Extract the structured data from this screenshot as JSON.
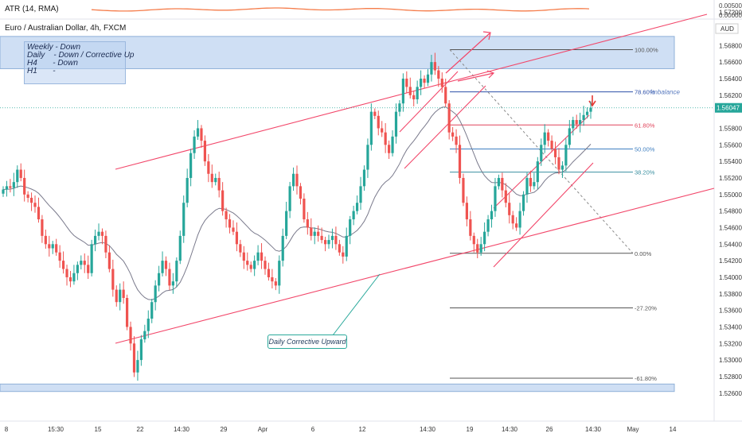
{
  "indicator": {
    "label": "ATR (14, RMA)",
    "value_label": "0.00500",
    "zero_label": "0.00000"
  },
  "header": {
    "symbol": "Euro / Australian Dollar, 4h, FXCM",
    "currency": "AUD"
  },
  "notes": [
    "Weekly - Down",
    "Daily    - Down / Corrective Up",
    "H4       - Down",
    "H1       -"
  ],
  "callout": "Daily Corrective Upward",
  "imbalance_label": "Imbalance",
  "colors": {
    "up": "#26a69a",
    "down": "#ef5350",
    "channel": "#f2476a",
    "zone": "#bbd2f0",
    "ma": "#7a7a8c",
    "atr": "#f57c4a"
  },
  "chart_data": {
    "type": "candlestick",
    "symbol": "EURAUD",
    "timeframe": "4h",
    "currency": "AUD",
    "y_range": [
      1.5255,
      1.5735
    ],
    "y_ticks": [
      "1.57200",
      "1.56800",
      "1.56600",
      "1.56400",
      "1.56200",
      "1.55800",
      "1.55600",
      "1.55400",
      "1.55200",
      "1.55000",
      "1.54800",
      "1.54600",
      "1.54400",
      "1.54200",
      "1.54000",
      "1.53800",
      "1.53600",
      "1.53400",
      "1.53200",
      "1.53000",
      "1.52800",
      "1.52600"
    ],
    "last_price": "1.56047",
    "x_ticks": [
      "8",
      "15:30",
      "15",
      "22",
      "14:30",
      "29",
      "Apr",
      "6",
      "12",
      "14:30",
      "19",
      "14:30",
      "26",
      "14:30",
      "May",
      "14"
    ],
    "fib_levels": [
      {
        "label": "100.00%",
        "value": 1.5675
      },
      {
        "label": "78.60%",
        "value": 1.5624
      },
      {
        "label": "61.80%",
        "value": 1.5584
      },
      {
        "label": "50.00%",
        "value": 1.5555
      },
      {
        "label": "38.20%",
        "value": 1.5527
      },
      {
        "label": "0.00%",
        "value": 1.5429
      },
      {
        "label": "-27.20%",
        "value": 1.5363
      },
      {
        "label": "-61.80%",
        "value": 1.5278
      }
    ],
    "zones": [
      {
        "from": 1.5652,
        "to": 1.5691
      },
      {
        "from": 1.5262,
        "to": 1.5271
      }
    ],
    "grid": false,
    "series": [
      {
        "values": [
          1.5506,
          1.551,
          1.5508,
          1.5515,
          1.553,
          1.552,
          1.55,
          1.5496,
          1.549,
          1.5485,
          1.547,
          1.545,
          1.544,
          1.5435,
          1.544,
          1.543,
          1.542,
          1.541,
          1.54,
          1.5395,
          1.5405,
          1.5415,
          1.542,
          1.5415,
          1.5405,
          1.544,
          1.545,
          1.5455,
          1.545,
          1.543,
          1.541,
          1.5385,
          1.537,
          1.5385,
          1.5375,
          1.534,
          1.532,
          1.5285,
          1.53,
          1.5325,
          1.5335,
          1.535,
          1.537,
          1.539,
          1.5405,
          1.542,
          1.541,
          1.539,
          1.5395,
          1.542,
          1.545,
          1.549,
          1.552,
          1.555,
          1.557,
          1.558,
          1.5565,
          1.554,
          1.5525,
          1.5515,
          1.552,
          1.5505,
          1.548,
          1.547,
          1.546,
          1.5455,
          1.544,
          1.543,
          1.542,
          1.5415,
          1.541,
          1.542,
          1.543,
          1.542,
          1.541,
          1.54,
          1.5395,
          1.539,
          1.542,
          1.545,
          1.548,
          1.551,
          1.5525,
          1.551,
          1.5495,
          1.547,
          1.546,
          1.545,
          1.5455,
          1.545,
          1.5445,
          1.544,
          1.5445,
          1.545,
          1.544,
          1.543,
          1.5425,
          1.545,
          1.547,
          1.548,
          1.549,
          1.551,
          1.553,
          1.556,
          1.56,
          1.5595,
          1.558,
          1.5575,
          1.556,
          1.555,
          1.557,
          1.56,
          1.561,
          1.564,
          1.563,
          1.562,
          1.5615,
          1.563,
          1.564,
          1.5635,
          1.5645,
          1.566,
          1.565,
          1.564,
          1.563,
          1.561,
          1.5575,
          1.557,
          1.556,
          1.552,
          1.549,
          1.547,
          1.545,
          1.544,
          1.543,
          1.544,
          1.5455,
          1.547,
          1.548,
          1.551,
          1.552,
          1.5505,
          1.549,
          1.5475,
          1.5465,
          1.546,
          1.548,
          1.55,
          1.552,
          1.551,
          1.5515,
          1.554,
          1.556,
          1.5575,
          1.5565,
          1.5555,
          1.5545,
          1.553,
          1.5535,
          1.556,
          1.558,
          1.559,
          1.5585,
          1.559,
          1.5596,
          1.56,
          1.5605
        ]
      },
      {
        "name": "",
        "values": []
      }
    ]
  }
}
